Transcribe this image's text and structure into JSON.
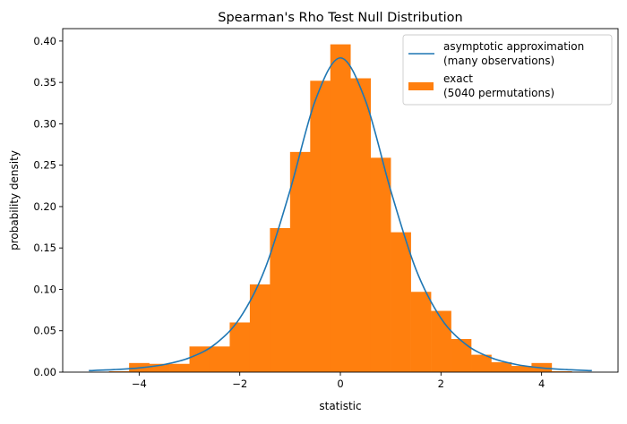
{
  "chart_data": {
    "type": "bar",
    "title": "Spearman's Rho Test Null Distribution",
    "xlabel": "statistic",
    "ylabel": "probability density",
    "xlim": [
      -5.52,
      5.52
    ],
    "ylim": [
      0,
      0.415
    ],
    "xticks": [
      -4,
      -2,
      0,
      2,
      4
    ],
    "xtick_labels": [
      "−4",
      "−2",
      "0",
      "2",
      "4"
    ],
    "yticks": [
      0,
      0.05,
      0.1,
      0.15,
      0.2,
      0.25,
      0.3,
      0.35,
      0.4
    ],
    "ytick_labels": [
      "0.00",
      "0.05",
      "0.10",
      "0.15",
      "0.20",
      "0.25",
      "0.30",
      "0.35",
      "0.40"
    ],
    "grid": false,
    "legend_position": "top-right",
    "series": [
      {
        "name": "asymptotic approximation\n(many observations)",
        "legend_lines": [
          "asymptotic approximation",
          "(many observations)"
        ],
        "type": "line",
        "color": "#1f77b4",
        "x": [
          -5,
          -4.5,
          -4,
          -3.5,
          -3,
          -2.5,
          -2,
          -1.5,
          -1,
          -0.5,
          0,
          0.5,
          1,
          1.5,
          2,
          2.5,
          3,
          3.5,
          4,
          4.5,
          5
        ],
        "y": [
          0.0018,
          0.003,
          0.0051,
          0.0092,
          0.0173,
          0.0333,
          0.0651,
          0.1245,
          0.2197,
          0.3279,
          0.3796,
          0.3279,
          0.2197,
          0.1245,
          0.0651,
          0.0333,
          0.0173,
          0.0092,
          0.0051,
          0.003,
          0.0018
        ]
      },
      {
        "name": "exact\n(5040 permutations)",
        "legend_lines": [
          "exact",
          "(5040 permutations)"
        ],
        "type": "histogram",
        "color": "#ff7f0e",
        "bin_edges": [
          -4.6,
          -4.2,
          -3.8,
          -3.4,
          -3.0,
          -2.6,
          -2.2,
          -1.8,
          -1.4,
          -1.0,
          -0.6,
          -0.2,
          0.2,
          0.6,
          1.0,
          1.4,
          1.8,
          2.2,
          2.6,
          3.0,
          3.4,
          3.8,
          4.2,
          4.6
        ],
        "values": [
          0.001,
          0.011,
          0.01,
          0.01,
          0.031,
          0.031,
          0.06,
          0.106,
          0.174,
          0.266,
          0.352,
          0.396,
          0.355,
          0.259,
          0.169,
          0.097,
          0.074,
          0.04,
          0.021,
          0.012,
          0.0075,
          0.011,
          0.001
        ]
      }
    ]
  }
}
